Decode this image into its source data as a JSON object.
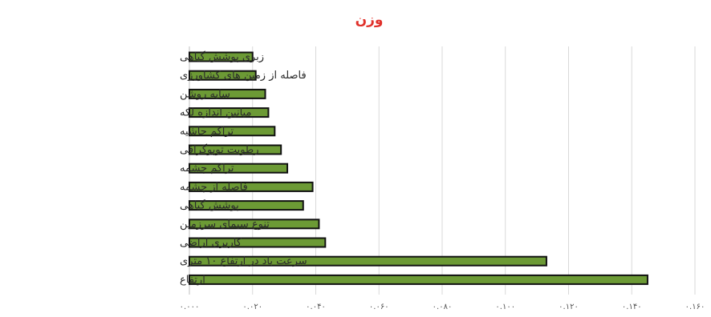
{
  "chart_data": {
    "type": "bar",
    "orientation": "horizontal",
    "title": "وزن",
    "title_color": "#e0302a",
    "bar_color": "#6c9a35",
    "bar_edge_color": "#111111",
    "grid": true,
    "xlim": [
      0,
      0.16
    ],
    "ticks": [
      0,
      0.02,
      0.04,
      0.06,
      0.08,
      0.1,
      0.12,
      0.14,
      0.16
    ],
    "tick_labels": [
      "۰.۰۰۰",
      "۰.۰۲۰",
      "۰.۰۴۰",
      "۰.۰۶۰",
      "۰.۰۸۰",
      "۰.۱۰۰",
      "۰.۱۲۰",
      "۰.۱۴۰",
      "۰.۱۶۰"
    ],
    "categories": [
      "زبری پوشش گیاهی",
      "فاصله از زمین های کشاورزی",
      "سایه روشن",
      "میانین اندازه لکه",
      "تراکم حاشیه",
      "رطوبت توپوگرافی",
      "تراکم چشمه",
      "فاصله از چشمه",
      "پوشش گیاهی",
      "تنوع سیمای سرزمین",
      "کاربری اراضی",
      "سرعت باد در ارتفاع ۱۰ متری",
      "ارتفاع"
    ],
    "values": [
      0.02,
      0.021,
      0.024,
      0.025,
      0.027,
      0.029,
      0.031,
      0.039,
      0.036,
      0.041,
      0.043,
      0.113,
      0.145
    ]
  }
}
